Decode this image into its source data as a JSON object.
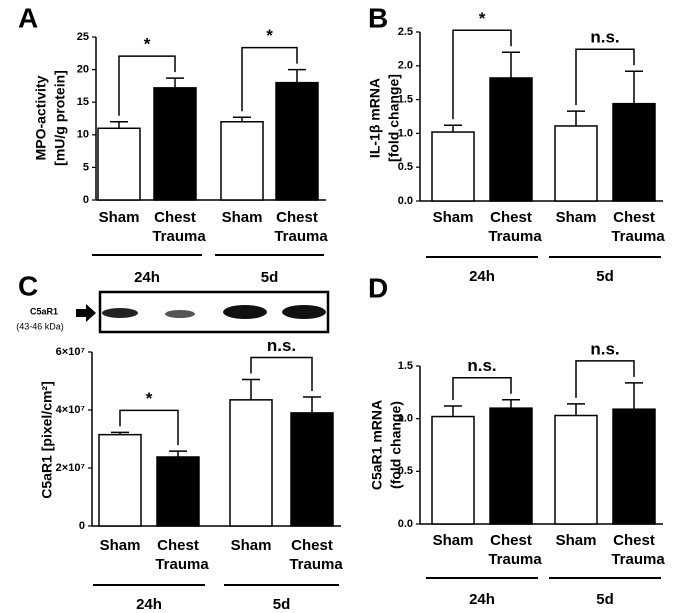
{
  "chart_data": [
    {
      "type": "bar",
      "panel_label": "A",
      "ylabel": [
        "MPO-activity",
        "[mU/g protein]"
      ],
      "categories": [
        [
          "Sham"
        ],
        [
          "Chest",
          "Trauma"
        ],
        [
          "Sham"
        ],
        [
          "Chest",
          "Trauma"
        ]
      ],
      "groups": [
        "24h",
        "5d"
      ],
      "values": [
        11,
        17.2,
        12,
        18
      ],
      "errors": [
        1,
        1.5,
        0.7,
        2
      ],
      "colors": [
        "#ffffff",
        "#000000",
        "#ffffff",
        "#000000"
      ],
      "annotations": [
        "*",
        "*"
      ],
      "ylim": [
        0,
        25
      ],
      "yticks": [
        0,
        5,
        10,
        15,
        20,
        25
      ]
    },
    {
      "type": "bar",
      "panel_label": "B",
      "ylabel": [
        "IL-1β mRNA",
        "[fold change]"
      ],
      "categories": [
        [
          "Sham"
        ],
        [
          "Chest",
          "Trauma"
        ],
        [
          "Sham"
        ],
        [
          "Chest",
          "Trauma"
        ]
      ],
      "groups": [
        "24h",
        "5d"
      ],
      "values": [
        1.02,
        1.82,
        1.11,
        1.44
      ],
      "errors": [
        0.1,
        0.38,
        0.22,
        0.48
      ],
      "colors": [
        "#ffffff",
        "#000000",
        "#ffffff",
        "#000000"
      ],
      "annotations": [
        "*",
        "n.s."
      ],
      "ylim": [
        0,
        2.5
      ],
      "yticks": [
        {
          "value": 0,
          "label": "0.0"
        },
        0.5,
        {
          "value": 1,
          "label": "1.0"
        },
        1.5,
        {
          "value": 2,
          "label": "2.0"
        },
        2.5
      ]
    },
    {
      "type": "bar",
      "panel_label": "C",
      "ylabel": [
        "C5aR1 [pixel/cm²]"
      ],
      "blot_label": [
        "C5aR1",
        "(43-46 kDa)"
      ],
      "categories": [
        [
          "Sham"
        ],
        [
          "Chest",
          "Trauma"
        ],
        [
          "Sham"
        ],
        [
          "Chest",
          "Trauma"
        ]
      ],
      "groups": [
        "24h",
        "5d"
      ],
      "values": [
        31500000,
        23800000,
        43500000,
        39000000
      ],
      "errors": [
        800000,
        2000000,
        7000000,
        5500000
      ],
      "colors": [
        "#ffffff",
        "#000000",
        "#ffffff",
        "#000000"
      ],
      "annotations": [
        "*",
        "n.s."
      ],
      "ylim": [
        0,
        60000000
      ],
      "yticks": [
        0,
        {
          "value": 20000000,
          "label": "2×10⁷"
        },
        {
          "value": 40000000,
          "label": "4×10⁷"
        },
        {
          "value": 60000000,
          "label": "6×10⁷"
        }
      ]
    },
    {
      "type": "bar",
      "panel_label": "D",
      "ylabel": [
        "C5aR1 mRNA",
        "(fold change)"
      ],
      "categories": [
        [
          "Sham"
        ],
        [
          "Chest",
          "Trauma"
        ],
        [
          "Sham"
        ],
        [
          "Chest",
          "Trauma"
        ]
      ],
      "groups": [
        "24h",
        "5d"
      ],
      "values": [
        1.02,
        1.1,
        1.03,
        1.09
      ],
      "errors": [
        0.1,
        0.08,
        0.11,
        0.25
      ],
      "colors": [
        "#ffffff",
        "#000000",
        "#ffffff",
        "#000000"
      ],
      "annotations": [
        "n.s.",
        "n.s."
      ],
      "ylim": [
        0,
        1.5
      ],
      "yticks": [
        {
          "value": 0,
          "label": "0.0"
        },
        0.5,
        {
          "value": 1,
          "label": "1.0"
        },
        1.5
      ]
    }
  ]
}
